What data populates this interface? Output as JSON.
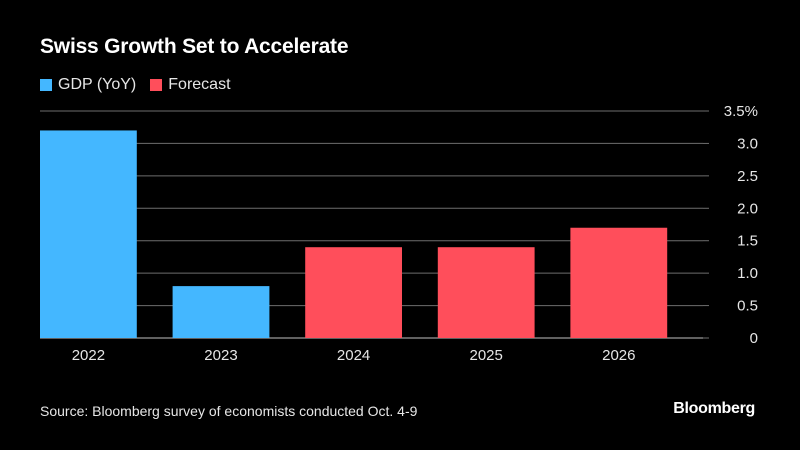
{
  "title": "Swiss Growth Set to Accelerate",
  "legend": [
    {
      "label": "GDP (YoY)",
      "color": "#44b7ff"
    },
    {
      "label": "Forecast",
      "color": "#ff4e5b"
    }
  ],
  "source": "Source: Bloomberg survey of economists conducted Oct. 4-9",
  "brand": "Bloomberg",
  "chart_data": {
    "type": "bar",
    "title": "Swiss Growth Set to Accelerate",
    "categories": [
      "2022",
      "2023",
      "2024",
      "2025",
      "2026"
    ],
    "series": [
      {
        "name": "GDP (YoY)",
        "values": [
          3.2,
          0.8,
          null,
          null,
          null
        ],
        "color": "#44b7ff"
      },
      {
        "name": "Forecast",
        "values": [
          null,
          null,
          1.4,
          1.4,
          1.7
        ],
        "color": "#ff4e5b"
      }
    ],
    "ylim": [
      0,
      3.5
    ],
    "yticks": [
      0,
      0.5,
      1.0,
      1.5,
      2.0,
      2.5,
      3.0,
      3.5
    ],
    "ytick_labels": [
      "0",
      "0.5",
      "1.0",
      "1.5",
      "2.0",
      "2.5",
      "3.0",
      "3.5%"
    ],
    "xlabel": "",
    "ylabel": "",
    "yaxis_position": "right",
    "grid": true
  }
}
